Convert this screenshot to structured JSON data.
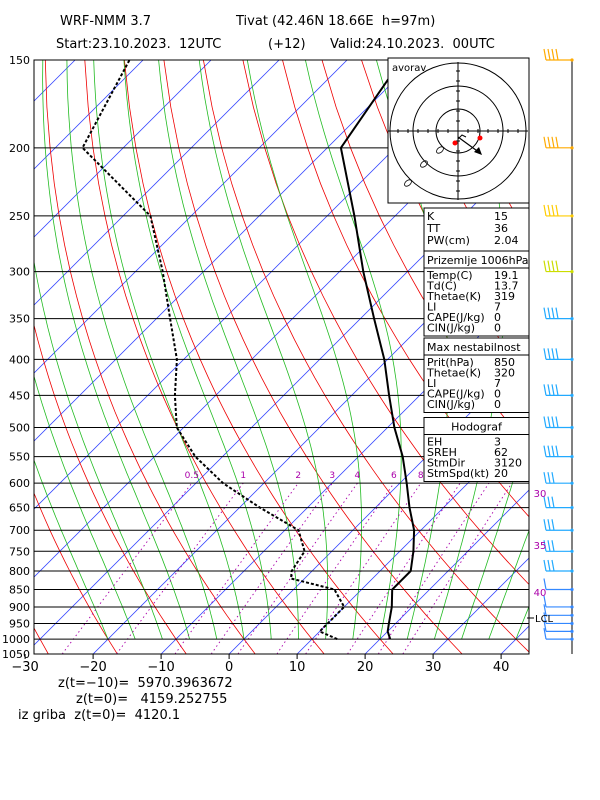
{
  "header": {
    "model": "WRF-NMM 3.7",
    "station": "Tivat (42.46N 18.66E  h=97m)",
    "start": "Start:23.10.2023.  12UTC",
    "offset": "(+12)",
    "valid": "Valid:24.10.2023.  00UTC"
  },
  "chart_data": {
    "type": "skew-t",
    "pressure_ticks": [
      "150",
      "200",
      "250",
      "300",
      "350",
      "400",
      "450",
      "500",
      "550",
      "600",
      "650",
      "700",
      "750",
      "800",
      "850",
      "900",
      "950",
      "1000",
      "1050"
    ],
    "temperature_ticks": [
      "−30",
      "−20",
      "−10",
      "0",
      "10",
      "20",
      "30",
      "40"
    ],
    "mixing_ratio_labels": [
      "0.5",
      "1",
      "2",
      "3",
      "4",
      "6",
      "8"
    ],
    "wind_speed_labels": [
      "30",
      "35",
      "40"
    ],
    "lcl_label": "LCL",
    "temperature_profile": [
      {
        "p": 1000,
        "t": 21.5
      },
      {
        "p": 975,
        "t": 20.0
      },
      {
        "p": 950,
        "t": 19.0
      },
      {
        "p": 900,
        "t": 17.0
      },
      {
        "p": 850,
        "t": 14.5
      },
      {
        "p": 800,
        "t": 14.5
      },
      {
        "p": 750,
        "t": 12.0
      },
      {
        "p": 700,
        "t": 9.0
      },
      {
        "p": 650,
        "t": 5.0
      },
      {
        "p": 600,
        "t": 1.0
      },
      {
        "p": 550,
        "t": -3.5
      },
      {
        "p": 500,
        "t": -9.0
      },
      {
        "p": 450,
        "t": -14.5
      },
      {
        "p": 400,
        "t": -20.5
      },
      {
        "p": 350,
        "t": -28.0
      },
      {
        "p": 300,
        "t": -36.5
      },
      {
        "p": 250,
        "t": -46.0
      },
      {
        "p": 200,
        "t": -58.0
      },
      {
        "p": 150,
        "t": -62.0
      }
    ],
    "dewpoint_profile": [
      {
        "p": 1000,
        "t": 13.7
      },
      {
        "p": 975,
        "t": 10.0
      },
      {
        "p": 950,
        "t": 10.0
      },
      {
        "p": 900,
        "t": 10.0
      },
      {
        "p": 850,
        "t": 6.0
      },
      {
        "p": 820,
        "t": -2.0
      },
      {
        "p": 800,
        "t": -3.0
      },
      {
        "p": 750,
        "t": -4.0
      },
      {
        "p": 700,
        "t": -8.0
      },
      {
        "p": 650,
        "t": -17.0
      },
      {
        "p": 600,
        "t": -26.0
      },
      {
        "p": 550,
        "t": -34.0
      },
      {
        "p": 500,
        "t": -41.0
      },
      {
        "p": 450,
        "t": -46.0
      },
      {
        "p": 400,
        "t": -51.0
      },
      {
        "p": 350,
        "t": -58.0
      },
      {
        "p": 300,
        "t": -66.0
      },
      {
        "p": 250,
        "t": -76.0
      },
      {
        "p": 200,
        "t": -96.0
      },
      {
        "p": 150,
        "t": -102.0
      }
    ],
    "wind_barb_levels": [
      1000,
      975,
      950,
      925,
      900,
      850,
      800,
      750,
      700,
      650,
      600,
      550,
      500,
      450,
      400,
      350,
      300,
      250,
      200,
      150
    ],
    "hodograph_label": "avorav"
  },
  "table": {
    "indices": [
      {
        "label": "K",
        "value": "15"
      },
      {
        "label": "TT",
        "value": "36"
      },
      {
        "label": "PW(cm)",
        "value": "2.04"
      }
    ],
    "surface": {
      "title": "Prizemlje 1006hPa",
      "rows": [
        {
          "label": "Temp(C)",
          "value": "19.1"
        },
        {
          "label": "Td(C)",
          "value": "13.7"
        },
        {
          "label": "Thetae(K)",
          "value": "319"
        },
        {
          "label": "LI",
          "value": "7"
        },
        {
          "label": "CAPE(J/kg)",
          "value": "0"
        },
        {
          "label": "CIN(J/kg)",
          "value": "0"
        }
      ]
    },
    "max_unstable": {
      "title": "Max nestabilnost",
      "rows": [
        {
          "label": "Prit(hPa)",
          "value": "850"
        },
        {
          "label": "Thetae(K)",
          "value": "320"
        },
        {
          "label": "LI",
          "value": "7"
        },
        {
          "label": "CAPE(J/kg)",
          "value": "0"
        },
        {
          "label": "CIN(J/kg)",
          "value": "0"
        }
      ]
    },
    "hodograf": {
      "title": "Hodograf",
      "rows": [
        {
          "label": "EH",
          "value": "3"
        },
        {
          "label": "SREH",
          "value": "62"
        },
        {
          "label": "StmDir",
          "value": "3120"
        },
        {
          "label": "StmSpd(kt)",
          "value": "20"
        }
      ]
    }
  },
  "footer": {
    "line1": "z(t=−10)=  5970.3963672",
    "line2": "z(t=0)=   4159.252755",
    "line3": "iz griba  z(t=0)=  4120.1"
  },
  "colors": {
    "isotherm": "#3344ff",
    "dry_adiabat": "#ee0000",
    "moist_adiabat": "#22bb22",
    "mixing_ratio": "#aa00aa",
    "wind_barb_cold": "#22aaff",
    "wind_barb_warm": "#ffcc00"
  }
}
